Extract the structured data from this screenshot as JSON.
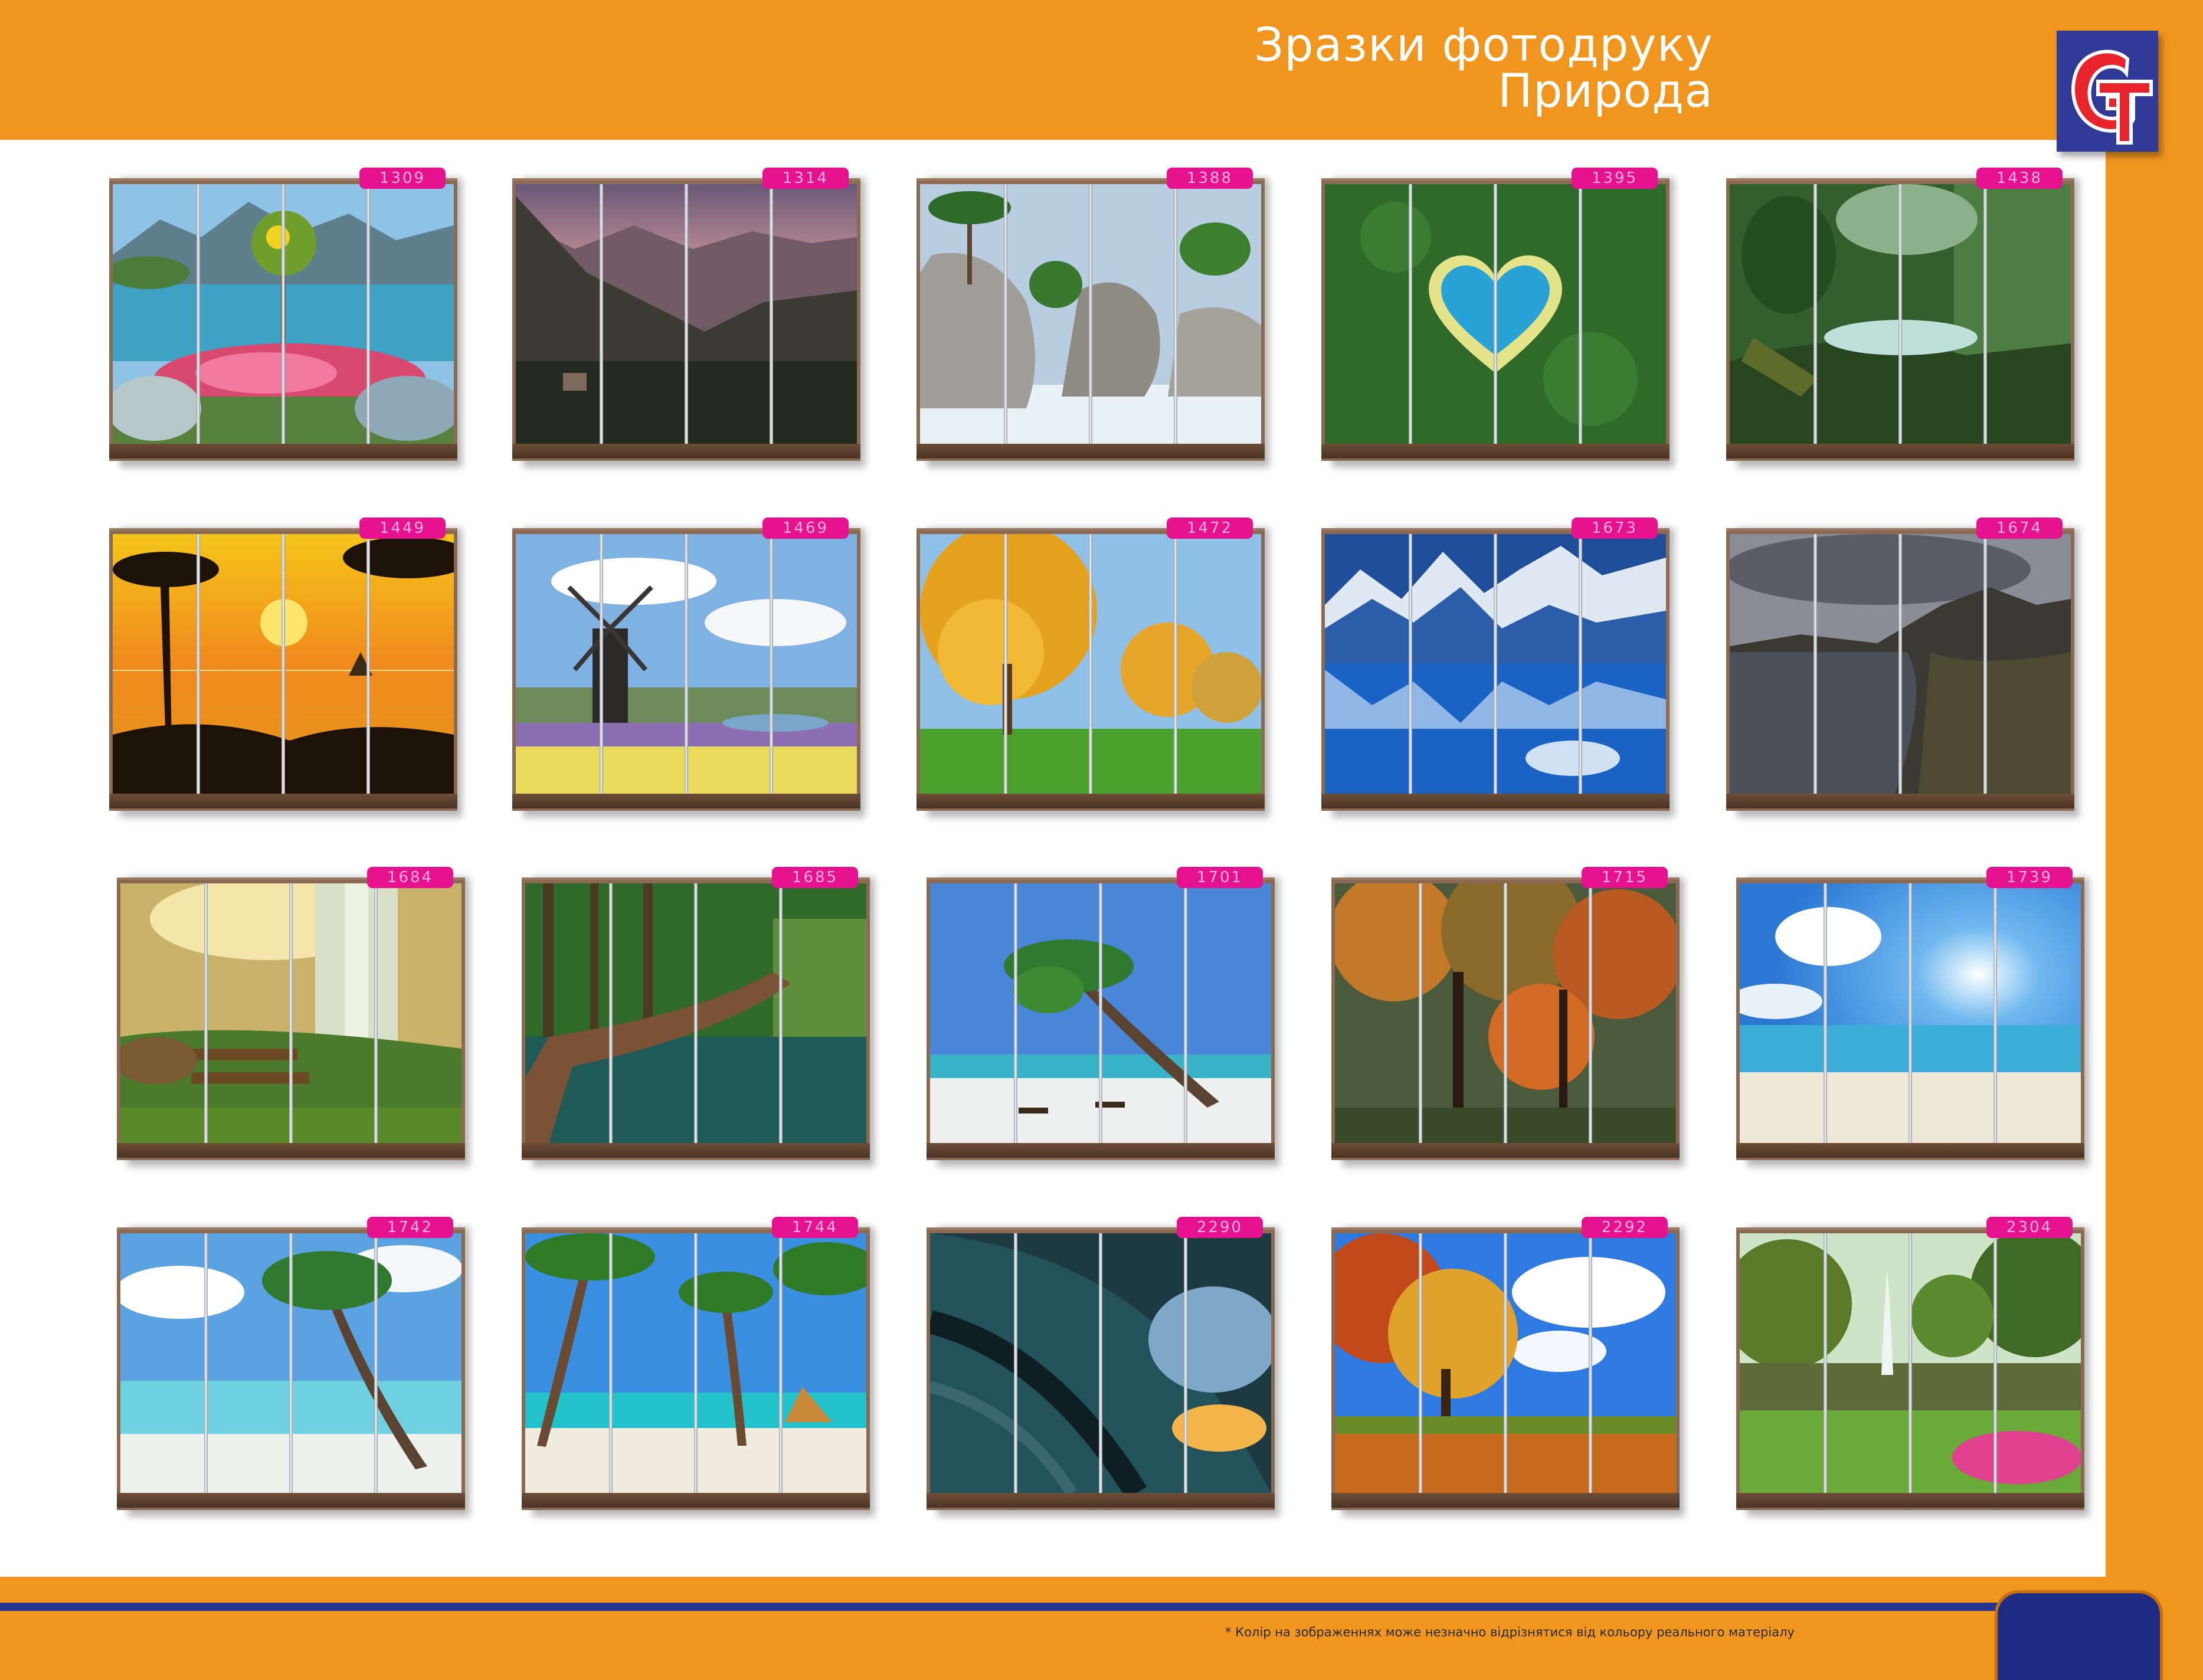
{
  "header": {
    "title_line1": "Зразки фотодруку",
    "title_line2": "Природа"
  },
  "logo": {
    "icon": "gt-logo",
    "colors": {
      "background": "#2f3a99",
      "g": "#e8232b",
      "t": "#ffffff"
    }
  },
  "colors": {
    "frame_orange": "#f0961f",
    "stripe_blue": "#26348f",
    "label_pink": "#e6118f"
  },
  "samples": [
    {
      "code": "1309",
      "theme": "lake-flowers"
    },
    {
      "code": "1314",
      "theme": "mountain-dusk"
    },
    {
      "code": "1388",
      "theme": "rocky-beach"
    },
    {
      "code": "1395",
      "theme": "heart-lake"
    },
    {
      "code": "1438",
      "theme": "jungle"
    },
    {
      "code": "1449",
      "theme": "tropical-sunset"
    },
    {
      "code": "1469",
      "theme": "windmill-tulips"
    },
    {
      "code": "1472",
      "theme": "autumn-park"
    },
    {
      "code": "1673",
      "theme": "blue-mountains"
    },
    {
      "code": "1674",
      "theme": "mountain-lake"
    },
    {
      "code": "1684",
      "theme": "waterfall"
    },
    {
      "code": "1685",
      "theme": "boardwalk"
    },
    {
      "code": "1701",
      "theme": "palm-beach"
    },
    {
      "code": "1715",
      "theme": "autumn-trees"
    },
    {
      "code": "1739",
      "theme": "sunny-sea"
    },
    {
      "code": "1742",
      "theme": "palm-shore"
    },
    {
      "code": "1744",
      "theme": "resort-beach"
    },
    {
      "code": "2290",
      "theme": "wave"
    },
    {
      "code": "2292",
      "theme": "autumn-meadow"
    },
    {
      "code": "2304",
      "theme": "fountain-park"
    }
  ],
  "footnote": "* Колір на зображеннях може незначно відрізнятися від кольору реального матеріалу"
}
